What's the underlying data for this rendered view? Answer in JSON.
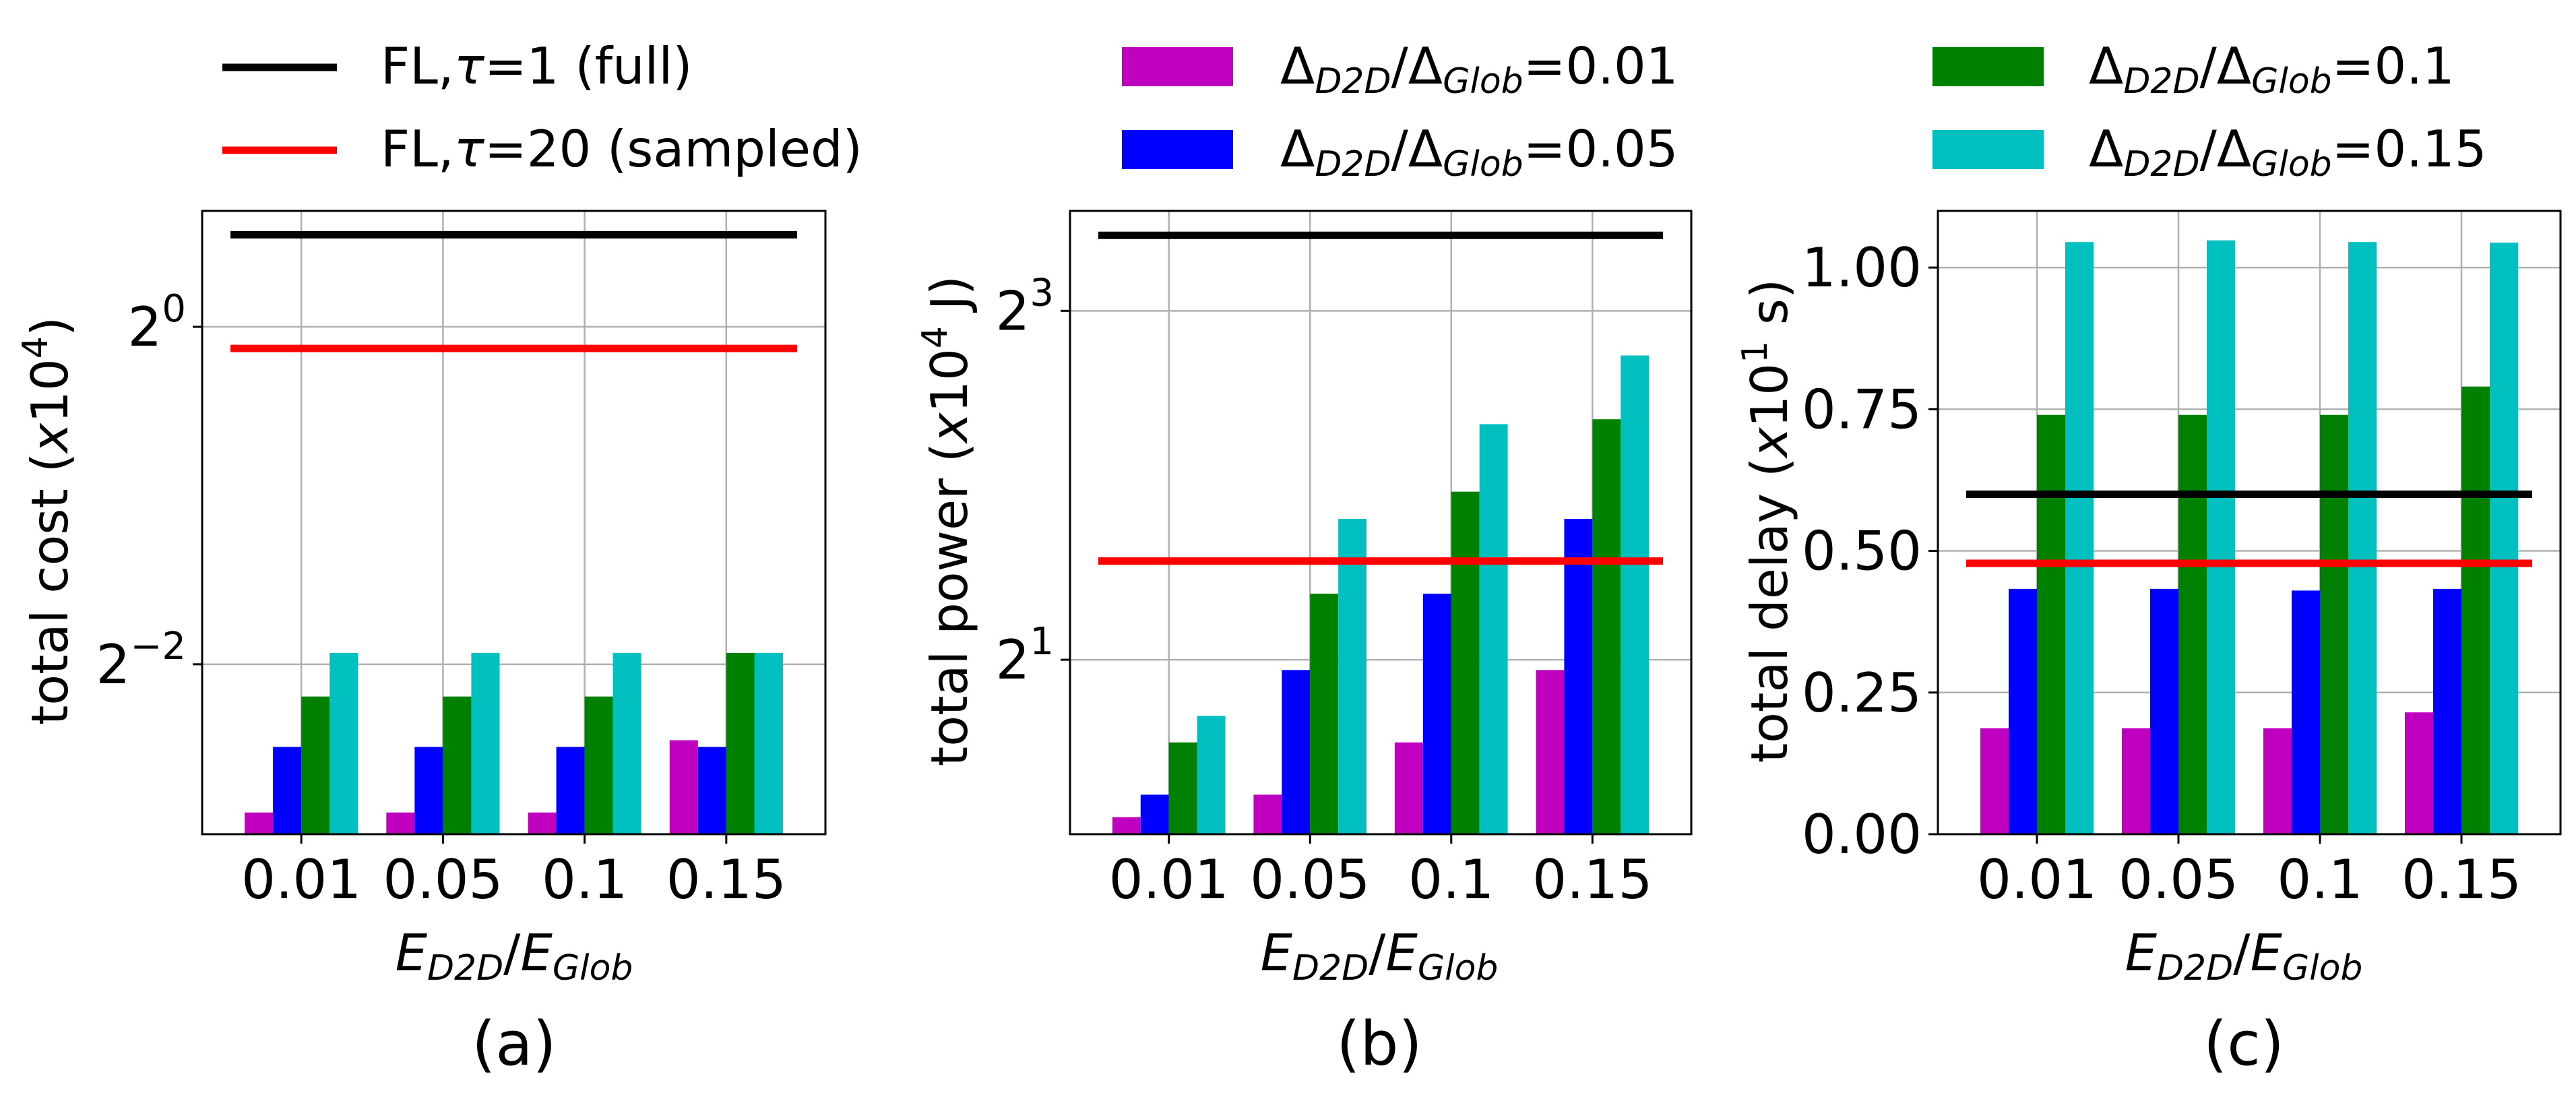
{
  "legend": {
    "lines": [
      {
        "prefix": "FL,",
        "tau": "τ",
        "suffix": "=1 (full)",
        "color": "#000000"
      },
      {
        "prefix": "FL,",
        "tau": "τ",
        "suffix": "=20 (sampled)",
        "color": "#ff0000"
      }
    ],
    "bars": [
      {
        "value": "0.01",
        "color": "#bf00bf"
      },
      {
        "value": "0.05",
        "color": "#0000ff"
      },
      {
        "value": "0.1",
        "color": "#008000"
      },
      {
        "value": "0.15",
        "color": "#00bfbf"
      }
    ],
    "bar_label": {
      "delta": "Δ",
      "d2d_sub": "D2D",
      "slash": "/",
      "glob_sub": "Glob",
      "eq": "="
    }
  },
  "xlabel": {
    "e": "E",
    "d2d_sub": "D2D",
    "slash": "/",
    "glob_sub": "Glob"
  },
  "chart_data": [
    {
      "type": "bar",
      "panel_label": "(a)",
      "ylabel": {
        "pre": "total cost (",
        "x": "x",
        "base": "10",
        "exp": "4",
        "post": ")"
      },
      "yscale": "log2",
      "ylim": [
        0.1244,
        1.61
      ],
      "yticks": [
        {
          "value": 1,
          "base": "2",
          "exp": "0"
        },
        {
          "value": 0.25,
          "base": "2",
          "exp": "−2"
        }
      ],
      "categories": [
        "0.01",
        "0.05",
        "0.1",
        "0.15"
      ],
      "series": [
        {
          "name": "ΔD2D/ΔGlob=0.01",
          "color": "#bf00bf",
          "values": [
            0.136,
            0.136,
            0.136,
            0.183
          ]
        },
        {
          "name": "ΔD2D/ΔGlob=0.05",
          "color": "#0000ff",
          "values": [
            0.178,
            0.178,
            0.178,
            0.178
          ]
        },
        {
          "name": "ΔD2D/ΔGlob=0.1",
          "color": "#008000",
          "values": [
            0.219,
            0.219,
            0.219,
            0.262
          ]
        },
        {
          "name": "ΔD2D/ΔGlob=0.15",
          "color": "#00bfbf",
          "values": [
            0.262,
            0.262,
            0.262,
            0.262
          ]
        }
      ],
      "hlines": [
        {
          "label": "FL,τ=1 (full)",
          "color": "#000000",
          "value": 1.46
        },
        {
          "label": "FL,τ=20 (sampled)",
          "color": "#ff0000",
          "value": 0.915
        }
      ],
      "grid": true
    },
    {
      "type": "bar",
      "panel_label": "(b)",
      "ylabel": {
        "pre": "total power (",
        "x": "x",
        "base": "10",
        "exp": "4",
        "post": " J)"
      },
      "yscale": "log2",
      "ylim": [
        1.0,
        11.9
      ],
      "yticks": [
        {
          "value": 8,
          "base": "2",
          "exp": "3"
        },
        {
          "value": 2,
          "base": "2",
          "exp": "1"
        }
      ],
      "categories": [
        "0.01",
        "0.05",
        "0.1",
        "0.15"
      ],
      "series": [
        {
          "name": "ΔD2D/ΔGlob=0.01",
          "color": "#bf00bf",
          "values": [
            1.07,
            1.17,
            1.44,
            1.92
          ]
        },
        {
          "name": "ΔD2D/ΔGlob=0.05",
          "color": "#0000ff",
          "values": [
            1.17,
            1.92,
            2.6,
            3.5
          ]
        },
        {
          "name": "ΔD2D/ΔGlob=0.1",
          "color": "#008000",
          "values": [
            1.44,
            2.6,
            3.9,
            5.2
          ]
        },
        {
          "name": "ΔD2D/ΔGlob=0.15",
          "color": "#00bfbf",
          "values": [
            1.6,
            3.5,
            5.1,
            6.7
          ]
        }
      ],
      "hlines": [
        {
          "label": "FL,τ=1 (full)",
          "color": "#000000",
          "value": 10.8
        },
        {
          "label": "FL,τ=20 (sampled)",
          "color": "#ff0000",
          "value": 2.96
        }
      ],
      "grid": true
    },
    {
      "type": "bar",
      "panel_label": "(c)",
      "ylabel": {
        "pre": "total delay (",
        "x": "x",
        "base": "10",
        "exp": "1",
        "post": " s)"
      },
      "yscale": "linear",
      "ylim": [
        0,
        1.1
      ],
      "yticks": [
        {
          "value": 0,
          "text": "0.00"
        },
        {
          "value": 0.25,
          "text": "0.25"
        },
        {
          "value": 0.5,
          "text": "0.50"
        },
        {
          "value": 0.75,
          "text": "0.75"
        },
        {
          "value": 1.0,
          "text": "1.00"
        }
      ],
      "categories": [
        "0.01",
        "0.05",
        "0.1",
        "0.15"
      ],
      "series": [
        {
          "name": "ΔD2D/ΔGlob=0.01",
          "color": "#bf00bf",
          "values": [
            0.187,
            0.187,
            0.187,
            0.215
          ]
        },
        {
          "name": "ΔD2D/ΔGlob=0.05",
          "color": "#0000ff",
          "values": [
            0.433,
            0.433,
            0.43,
            0.433
          ]
        },
        {
          "name": "ΔD2D/ΔGlob=0.1",
          "color": "#008000",
          "values": [
            0.74,
            0.74,
            0.74,
            0.79
          ]
        },
        {
          "name": "ΔD2D/ΔGlob=0.15",
          "color": "#00bfbf",
          "values": [
            1.045,
            1.048,
            1.045,
            1.044
          ]
        }
      ],
      "hlines": [
        {
          "label": "FL,τ=1 (full)",
          "color": "#000000",
          "value": 0.6
        },
        {
          "label": "FL,τ=20 (sampled)",
          "color": "#ff0000",
          "value": 0.478
        }
      ],
      "grid": true
    }
  ]
}
